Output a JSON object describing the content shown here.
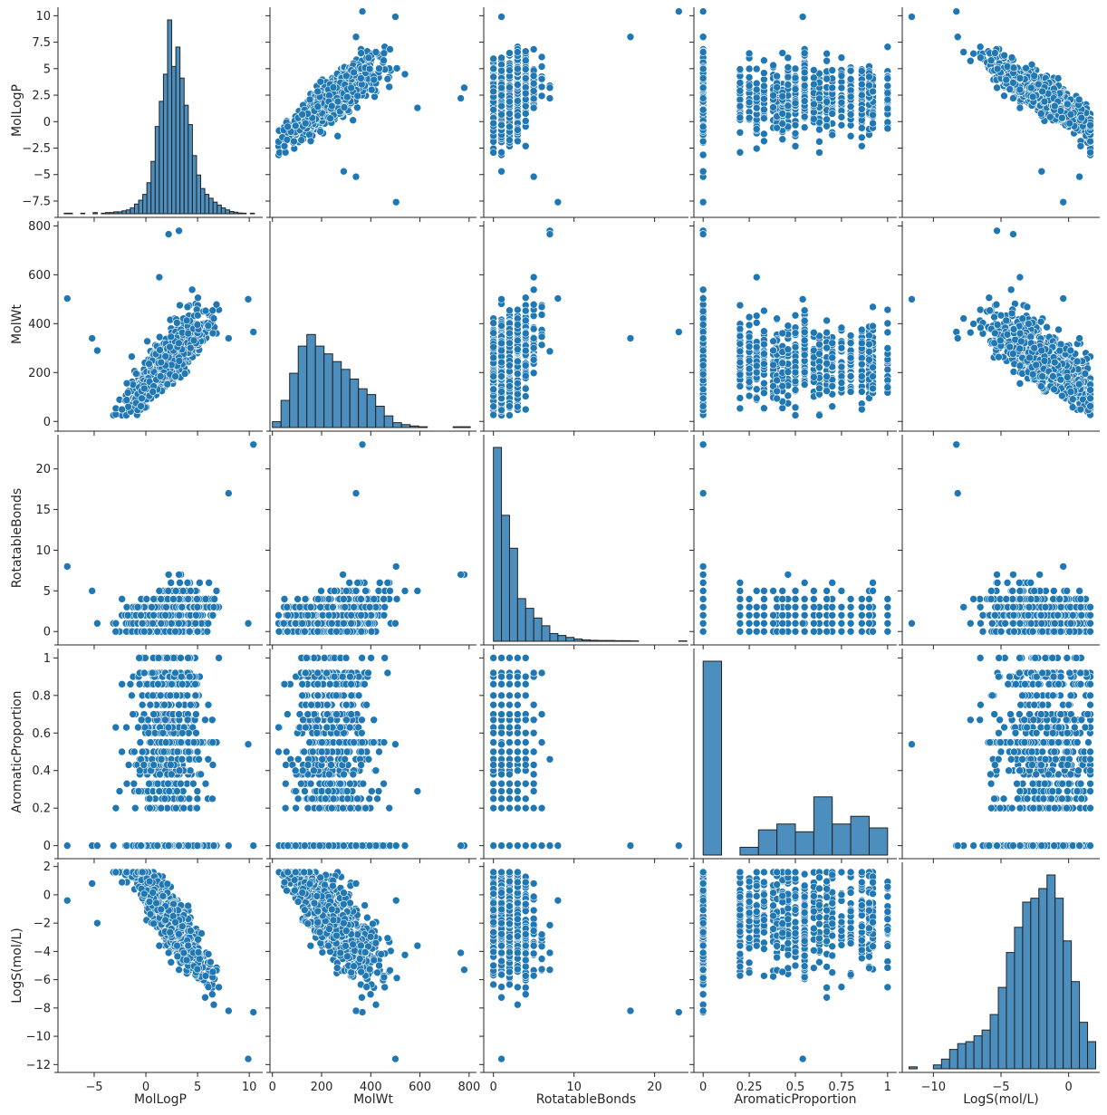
{
  "chart_data": {
    "type": "scatter",
    "title": "",
    "variables": [
      "MolLogP",
      "MolWt",
      "RotatableBonds",
      "AromaticProportion",
      "LogS(mol/L)"
    ],
    "diagonal_kind": "histogram",
    "offdiag_kind": "scatter",
    "grid": false,
    "colors": {
      "points": "#1f77b4",
      "bars": "#4c8fbe",
      "bar_edge": "#222222",
      "axes": "#262626"
    },
    "axes": {
      "MolLogP": {
        "x_range": [
          -8.5,
          11.3
        ],
        "x_ticks": [
          -5,
          0,
          5,
          10
        ],
        "y_range": [
          -8.7,
          10.8
        ],
        "y_ticks": [
          -7.5,
          -5.0,
          -2.5,
          0.0,
          2.5,
          5.0,
          7.5,
          10.0
        ]
      },
      "MolWt": {
        "x_range": [
          -10,
          830
        ],
        "x_ticks": [
          0,
          200,
          400,
          600,
          800
        ],
        "y_range": [
          -25,
          820
        ],
        "y_ticks": [
          0,
          200,
          400,
          600,
          800
        ]
      },
      "RotatableBonds": {
        "x_range": [
          -1.2,
          24.2
        ],
        "x_ticks": [
          0,
          10,
          20
        ],
        "y_range": [
          -1.2,
          24.2
        ],
        "y_ticks": [
          0,
          5,
          10,
          15,
          20
        ]
      },
      "AromaticProportion": {
        "x_range": [
          -0.05,
          1.05
        ],
        "x_ticks": [
          0.0,
          0.25,
          0.5,
          0.75,
          1.0
        ],
        "y_range": [
          -0.05,
          1.05
        ],
        "y_ticks": [
          0.0,
          0.2,
          0.4,
          0.6,
          0.8,
          1.0
        ]
      },
      "LogS(mol/L)": {
        "x_range": [
          -12.3,
          2.3
        ],
        "x_ticks": [
          -10,
          -5,
          0
        ],
        "y_range": [
          -12.3,
          2.3
        ],
        "y_ticks": [
          -12,
          -10,
          -8,
          -6,
          -4,
          -2,
          0,
          2
        ]
      }
    },
    "histograms": {
      "MolLogP": {
        "bins": [
          [
            -7.9,
            0.003
          ],
          [
            -7.5,
            0.003
          ],
          [
            -7.1,
            0
          ],
          [
            -6.7,
            0
          ],
          [
            -6.3,
            0.003
          ],
          [
            -5.9,
            0
          ],
          [
            -5.5,
            0
          ],
          [
            -5.1,
            0.006
          ],
          [
            -4.7,
            0
          ],
          [
            -4.3,
            0.003
          ],
          [
            -3.9,
            0.006
          ],
          [
            -3.5,
            0.006
          ],
          [
            -3.1,
            0.01
          ],
          [
            -2.7,
            0.01
          ],
          [
            -2.3,
            0.015
          ],
          [
            -1.9,
            0.02
          ],
          [
            -1.5,
            0.03
          ],
          [
            -1.1,
            0.05
          ],
          [
            -0.7,
            0.07
          ],
          [
            -0.3,
            0.1
          ],
          [
            0.1,
            0.16
          ],
          [
            0.5,
            0.27
          ],
          [
            0.9,
            0.45
          ],
          [
            1.3,
            0.58
          ],
          [
            1.7,
            0.72
          ],
          [
            2.1,
            1.0
          ],
          [
            2.5,
            0.76
          ],
          [
            2.9,
            0.86
          ],
          [
            3.3,
            0.7
          ],
          [
            3.7,
            0.56
          ],
          [
            4.1,
            0.46
          ],
          [
            4.5,
            0.3
          ],
          [
            4.9,
            0.2
          ],
          [
            5.3,
            0.13
          ],
          [
            5.7,
            0.1
          ],
          [
            6.1,
            0.08
          ],
          [
            6.5,
            0.06
          ],
          [
            6.9,
            0.045
          ],
          [
            7.3,
            0.03
          ],
          [
            7.7,
            0.02
          ],
          [
            8.1,
            0.012
          ],
          [
            8.5,
            0.008
          ],
          [
            8.9,
            0.004
          ],
          [
            9.3,
            0.003
          ],
          [
            9.7,
            0
          ],
          [
            10.1,
            0.003
          ]
        ],
        "bin_width": 0.4
      },
      "MolWt": {
        "bins": [
          [
            0,
            0.03
          ],
          [
            35,
            0.14
          ],
          [
            70,
            0.28
          ],
          [
            105,
            0.42
          ],
          [
            140,
            0.48
          ],
          [
            175,
            0.42
          ],
          [
            210,
            0.38
          ],
          [
            245,
            0.34
          ],
          [
            280,
            0.3
          ],
          [
            315,
            0.25
          ],
          [
            350,
            0.2
          ],
          [
            385,
            0.17
          ],
          [
            420,
            0.11
          ],
          [
            455,
            0.06
          ],
          [
            490,
            0.025
          ],
          [
            525,
            0.015
          ],
          [
            560,
            0.008
          ],
          [
            595,
            0.004
          ],
          [
            630,
            0
          ],
          [
            665,
            0
          ],
          [
            700,
            0
          ],
          [
            735,
            0.004
          ],
          [
            770,
            0.004
          ]
        ],
        "bin_width": 35
      },
      "RotatableBonds": {
        "bins": [
          [
            0,
            1.0
          ],
          [
            1,
            0.65
          ],
          [
            2,
            0.48
          ],
          [
            3,
            0.22
          ],
          [
            4,
            0.17
          ],
          [
            5,
            0.12
          ],
          [
            6,
            0.08
          ],
          [
            7,
            0.04
          ],
          [
            8,
            0.03
          ],
          [
            9,
            0.02
          ],
          [
            10,
            0.012
          ],
          [
            11,
            0.007
          ],
          [
            12,
            0.005
          ],
          [
            13,
            0.004
          ],
          [
            14,
            0.004
          ],
          [
            15,
            0.003
          ],
          [
            16,
            0.003
          ],
          [
            17,
            0.002
          ],
          [
            18,
            0
          ],
          [
            19,
            0
          ],
          [
            20,
            0
          ],
          [
            21,
            0
          ],
          [
            22,
            0
          ],
          [
            23,
            0.002
          ]
        ],
        "bin_width": 1
      },
      "AromaticProportion": {
        "bins": [
          [
            0.0,
            1.0
          ],
          [
            0.1,
            0.0
          ],
          [
            0.2,
            0.04
          ],
          [
            0.3,
            0.13
          ],
          [
            0.4,
            0.16
          ],
          [
            0.5,
            0.12
          ],
          [
            0.6,
            0.3
          ],
          [
            0.7,
            0.16
          ],
          [
            0.8,
            0.2
          ],
          [
            0.9,
            0.14
          ]
        ],
        "bin_width": 0.1
      },
      "LogS(mol/L)": {
        "bins": [
          [
            -11.8,
            0.01
          ],
          [
            -11.2,
            0
          ],
          [
            -10.6,
            0
          ],
          [
            -10.0,
            0.02
          ],
          [
            -9.4,
            0.05
          ],
          [
            -8.8,
            0.1
          ],
          [
            -8.2,
            0.13
          ],
          [
            -7.6,
            0.14
          ],
          [
            -7.0,
            0.17
          ],
          [
            -6.4,
            0.2
          ],
          [
            -5.8,
            0.28
          ],
          [
            -5.2,
            0.42
          ],
          [
            -4.6,
            0.6
          ],
          [
            -4.0,
            0.73
          ],
          [
            -3.4,
            0.86
          ],
          [
            -2.8,
            0.88
          ],
          [
            -2.2,
            0.93
          ],
          [
            -1.6,
            1.0
          ],
          [
            -1.0,
            0.88
          ],
          [
            -0.4,
            0.66
          ],
          [
            0.2,
            0.45
          ],
          [
            0.8,
            0.24
          ],
          [
            1.4,
            0.14
          ]
        ],
        "bin_width": 0.6
      }
    },
    "outlier_points": [
      {
        "MolLogP": 10.4,
        "MolWt": 366,
        "RotatableBonds": 23,
        "AromaticProportion": 0.0,
        "LogS(mol/L)": -8.3
      },
      {
        "MolLogP": 9.9,
        "MolWt": 500,
        "RotatableBonds": 1,
        "AromaticProportion": 0.54,
        "LogS(mol/L)": -11.6
      },
      {
        "MolLogP": 3.2,
        "MolWt": 780,
        "RotatableBonds": 7,
        "AromaticProportion": 0.0,
        "LogS(mol/L)": -5.3
      },
      {
        "MolLogP": 2.2,
        "MolWt": 766,
        "RotatableBonds": 7,
        "AromaticProportion": 0.0,
        "LogS(mol/L)": -4.1
      },
      {
        "MolLogP": -7.6,
        "MolWt": 503,
        "RotatableBonds": 8,
        "AromaticProportion": 0.0,
        "LogS(mol/L)": -0.4
      },
      {
        "MolLogP": 1.3,
        "MolWt": 590,
        "RotatableBonds": 5,
        "AromaticProportion": 0.29,
        "LogS(mol/L)": -3.6
      },
      {
        "MolLogP": 8.0,
        "MolWt": 340,
        "RotatableBonds": 17,
        "AromaticProportion": 0.0,
        "LogS(mol/L)": -8.2
      },
      {
        "MolLogP": -5.2,
        "MolWt": 340,
        "RotatableBonds": 5,
        "AromaticProportion": 0.0,
        "LogS(mol/L)": 0.8
      },
      {
        "MolLogP": -4.7,
        "MolWt": 290,
        "RotatableBonds": 1,
        "AromaticProportion": 0.0,
        "LogS(mol/L)": -2.0
      }
    ]
  }
}
